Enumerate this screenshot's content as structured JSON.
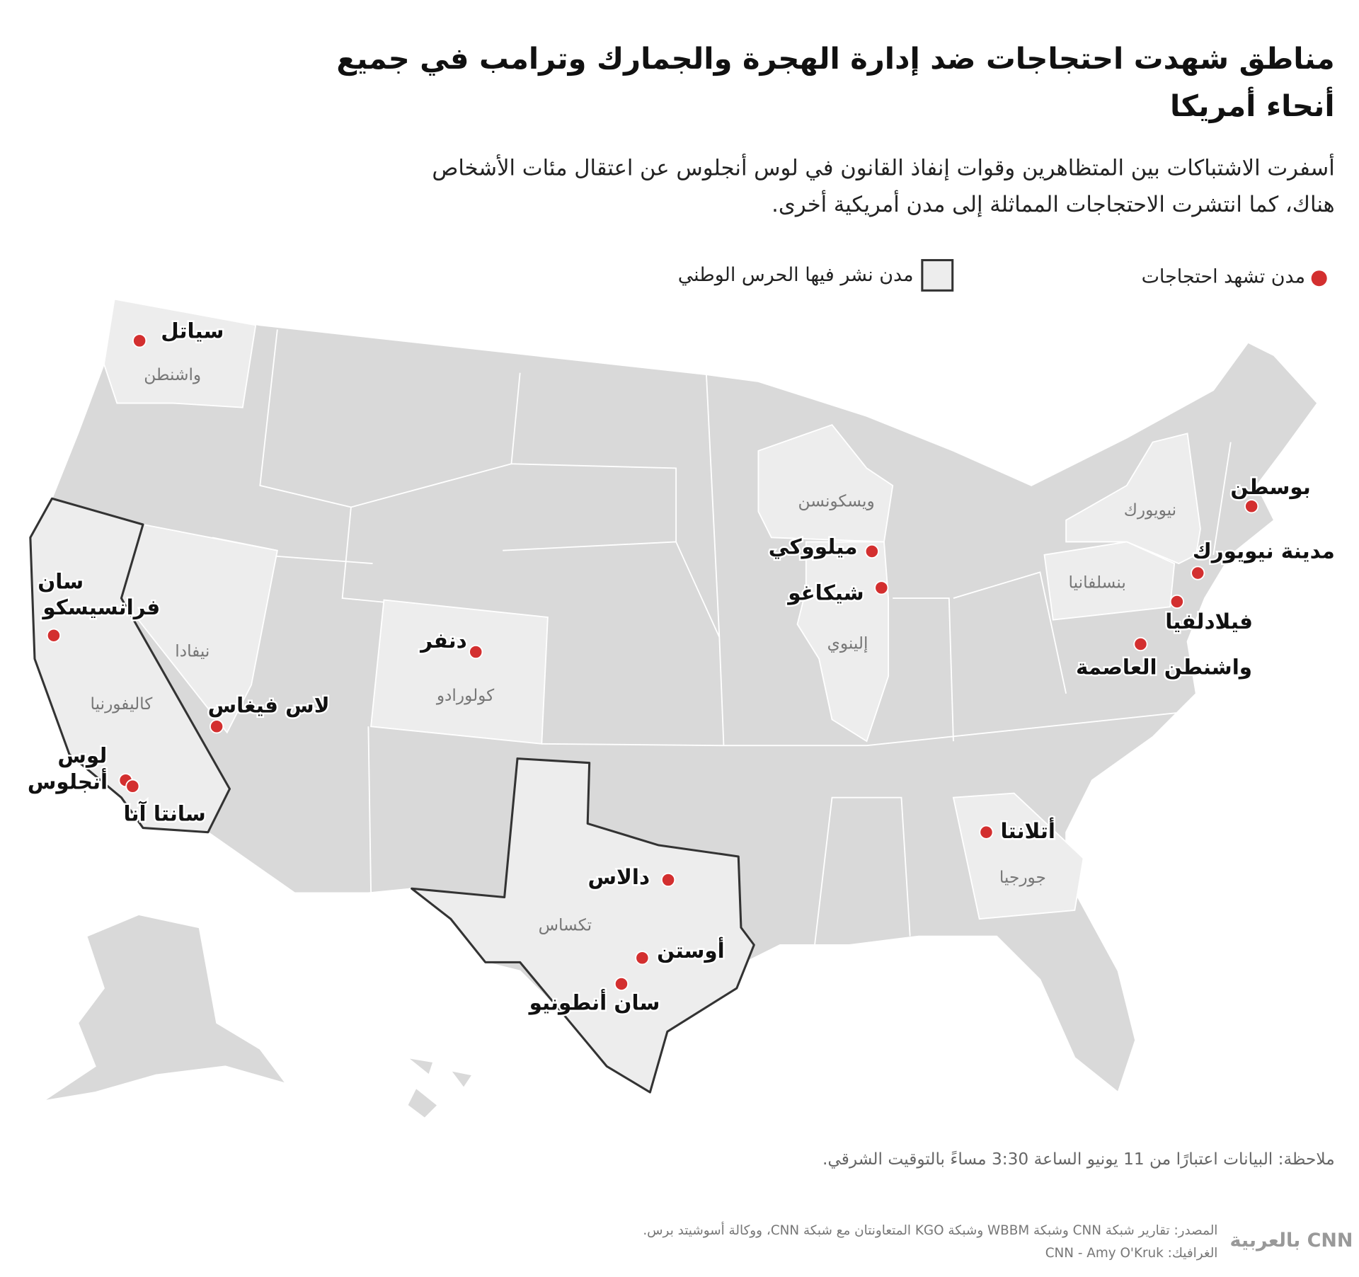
{
  "header": {
    "title": [
      "مناطق شهدت احتجاجات ضد إدارة الهجرة والجمارك وترامب في جميع",
      "أنحاء أمريكا"
    ],
    "subtitle": [
      "أسفرت الاشتباكات بين المتظاهرين وقوات إنفاذ القانون في لوس أنجلوس عن اعتقال مئات الأشخاص",
      "هناك، كما انتشرت الاحتجاجات المماثلة إلى مدن أمريكية أخرى."
    ]
  },
  "legend": {
    "protests": "مدن تشهد احتجاجات",
    "national_guard": "مدن نشر فيها الحرس الوطني"
  },
  "map": {
    "states": [
      "واشنطن",
      "نيفادا",
      "كاليفورنيا",
      "كولورادو",
      "تكساس",
      "ويسكونسن",
      "إلينوي",
      "نيويورك",
      "بنسلفانيا",
      "جورجيا"
    ],
    "cities": [
      {
        "label": [
          "سياتل"
        ]
      },
      {
        "label": [
          "سان",
          "فرانسيسكو"
        ]
      },
      {
        "label": [
          "لاس فيغاس"
        ]
      },
      {
        "label": [
          "لوس",
          "أنجلوس"
        ]
      },
      {
        "label": [
          "سانتا آنا"
        ]
      },
      {
        "label": [
          "دنفر"
        ]
      },
      {
        "label": [
          "دالاس"
        ]
      },
      {
        "label": [
          "أوستن"
        ]
      },
      {
        "label": [
          "سان أنطونيو"
        ]
      },
      {
        "label": [
          "ميلووكي"
        ]
      },
      {
        "label": [
          "شيكاغو"
        ]
      },
      {
        "label": [
          "أتلانتا"
        ]
      },
      {
        "label": [
          "بوسطن"
        ]
      },
      {
        "label": [
          "مدينة نيويورك"
        ]
      },
      {
        "label": [
          "فيلادلفيا"
        ]
      },
      {
        "label": [
          "واشنطن العاصمة"
        ]
      }
    ]
  },
  "footer": {
    "note": "ملاحظة: البيانات اعتبارًا من 11 يونيو الساعة 3:30 مساءً بالتوقيت الشرقي.",
    "source": "المصدر: تقارير شبكة CNN وشبكة WBBM وشبكة KGO المتعاونتان مع شبكة CNN، ووكالة أسوشيتد برس.",
    "credit": "الغرافيك: CNN - Amy O'Kruk",
    "logo": "CNN بالعربية"
  }
}
